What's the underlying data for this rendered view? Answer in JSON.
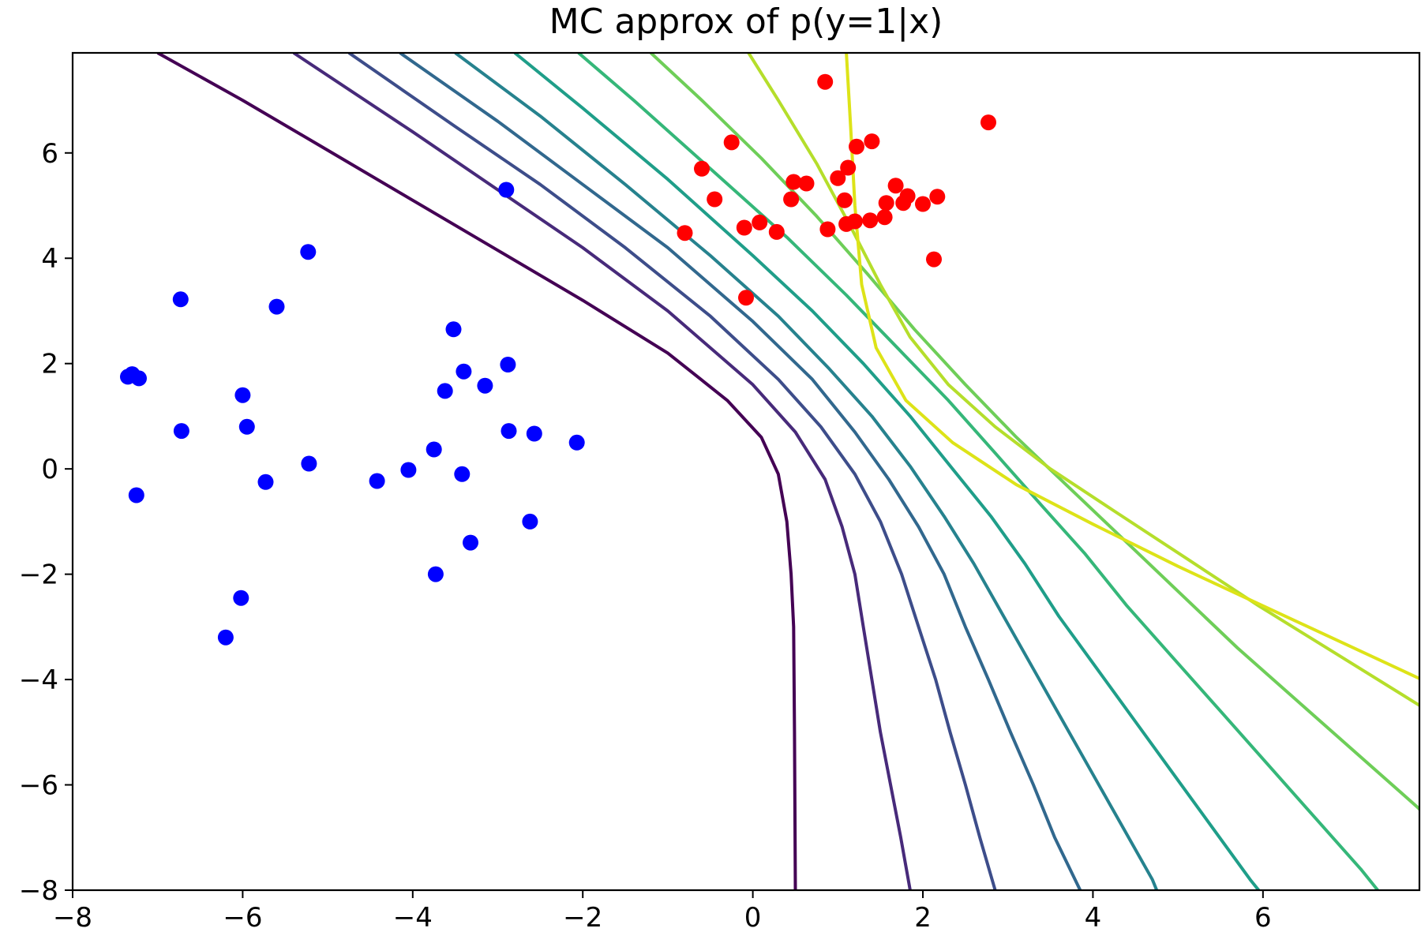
{
  "chart_data": {
    "type": "scatter",
    "title": "MC approx of p(y=1|x)",
    "xlabel": "",
    "ylabel": "",
    "xlim": [
      -8,
      8
    ],
    "ylim": [
      -8,
      8
    ],
    "xticks": [
      -8,
      -6,
      -4,
      -2,
      0,
      2,
      4,
      6
    ],
    "yticks": [
      -8,
      -6,
      -4,
      -2,
      0,
      2,
      4,
      6
    ],
    "xtick_labels": [
      "−8",
      "−6",
      "−4",
      "−2",
      "0",
      "2",
      "4",
      "6"
    ],
    "ytick_labels": [
      "−8",
      "−6",
      "−4",
      "−2",
      "0",
      "2",
      "4",
      "6"
    ],
    "grid": false,
    "series": [
      {
        "color": "#0000ff",
        "points": [
          [
            -7.35,
            1.75
          ],
          [
            -7.3,
            1.8
          ],
          [
            -7.22,
            1.72
          ],
          [
            -7.25,
            -0.5
          ],
          [
            -6.73,
            3.22
          ],
          [
            -6.72,
            0.72
          ],
          [
            -6.0,
            1.4
          ],
          [
            -5.95,
            0.8
          ],
          [
            -6.02,
            -2.45
          ],
          [
            -6.2,
            -3.2
          ],
          [
            -5.73,
            -0.25
          ],
          [
            -5.6,
            3.08
          ],
          [
            -5.23,
            4.12
          ],
          [
            -5.22,
            0.1
          ],
          [
            -4.42,
            -0.23
          ],
          [
            -4.05,
            -0.02
          ],
          [
            -3.75,
            0.37
          ],
          [
            -3.73,
            -2.0
          ],
          [
            -3.62,
            1.48
          ],
          [
            -3.52,
            2.65
          ],
          [
            -3.4,
            1.85
          ],
          [
            -3.42,
            -0.1
          ],
          [
            -3.32,
            -1.4
          ],
          [
            -3.15,
            1.58
          ],
          [
            -2.88,
            1.98
          ],
          [
            -2.87,
            0.72
          ],
          [
            -2.62,
            -1.0
          ],
          [
            -2.57,
            0.67
          ],
          [
            -2.07,
            0.5
          ],
          [
            -2.9,
            5.3
          ]
        ]
      },
      {
        "color": "#ff0000",
        "points": [
          [
            -0.8,
            4.48
          ],
          [
            -0.6,
            5.7
          ],
          [
            -0.45,
            5.12
          ],
          [
            -0.25,
            6.2
          ],
          [
            -0.1,
            4.58
          ],
          [
            -0.08,
            3.25
          ],
          [
            0.08,
            4.68
          ],
          [
            0.28,
            4.5
          ],
          [
            0.45,
            5.12
          ],
          [
            0.48,
            5.45
          ],
          [
            0.63,
            5.42
          ],
          [
            0.85,
            7.35
          ],
          [
            0.88,
            4.55
          ],
          [
            1.0,
            5.52
          ],
          [
            1.08,
            5.1
          ],
          [
            1.1,
            4.65
          ],
          [
            1.12,
            5.72
          ],
          [
            1.2,
            4.7
          ],
          [
            1.22,
            6.12
          ],
          [
            1.38,
            4.72
          ],
          [
            1.4,
            6.22
          ],
          [
            1.55,
            4.78
          ],
          [
            1.57,
            5.05
          ],
          [
            1.68,
            5.38
          ],
          [
            1.77,
            5.05
          ],
          [
            1.82,
            5.18
          ],
          [
            2.0,
            5.03
          ],
          [
            2.13,
            3.98
          ],
          [
            2.17,
            5.17
          ],
          [
            2.77,
            6.58
          ]
        ]
      }
    ],
    "contours": [
      {
        "color": "#440154",
        "points": [
          [
            -7.0,
            7.9
          ],
          [
            -6.0,
            7.0
          ],
          [
            -5.0,
            6.05
          ],
          [
            -4.0,
            5.1
          ],
          [
            -3.0,
            4.15
          ],
          [
            -2.0,
            3.2
          ],
          [
            -1.0,
            2.2
          ],
          [
            -0.3,
            1.3
          ],
          [
            0.1,
            0.6
          ],
          [
            0.3,
            -0.1
          ],
          [
            0.4,
            -1.0
          ],
          [
            0.45,
            -2.0
          ],
          [
            0.48,
            -3.0
          ],
          [
            0.49,
            -5.0
          ],
          [
            0.5,
            -8.0
          ]
        ]
      },
      {
        "color": "#472a7a",
        "points": [
          [
            -5.4,
            7.9
          ],
          [
            -4.0,
            6.4
          ],
          [
            -3.0,
            5.3
          ],
          [
            -2.0,
            4.2
          ],
          [
            -1.0,
            3.0
          ],
          [
            0.0,
            1.6
          ],
          [
            0.5,
            0.7
          ],
          [
            0.85,
            -0.2
          ],
          [
            1.05,
            -1.1
          ],
          [
            1.2,
            -2.0
          ],
          [
            1.3,
            -3.0
          ],
          [
            1.4,
            -4.0
          ],
          [
            1.5,
            -5.0
          ],
          [
            1.62,
            -6.0
          ],
          [
            1.74,
            -7.0
          ],
          [
            1.85,
            -8.0
          ]
        ]
      },
      {
        "color": "#3d4d8a",
        "points": [
          [
            -4.75,
            7.9
          ],
          [
            -3.5,
            6.5
          ],
          [
            -2.5,
            5.4
          ],
          [
            -1.5,
            4.2
          ],
          [
            -0.5,
            2.9
          ],
          [
            0.3,
            1.7
          ],
          [
            0.8,
            0.8
          ],
          [
            1.2,
            -0.1
          ],
          [
            1.5,
            -1.0
          ],
          [
            1.75,
            -2.0
          ],
          [
            1.95,
            -3.0
          ],
          [
            2.15,
            -4.0
          ],
          [
            2.32,
            -5.0
          ],
          [
            2.5,
            -6.0
          ],
          [
            2.67,
            -7.0
          ],
          [
            2.85,
            -8.0
          ]
        ]
      },
      {
        "color": "#31688e",
        "points": [
          [
            -4.15,
            7.9
          ],
          [
            -3.0,
            6.6
          ],
          [
            -2.0,
            5.4
          ],
          [
            -1.0,
            4.2
          ],
          [
            0.0,
            2.8
          ],
          [
            0.7,
            1.7
          ],
          [
            1.2,
            0.7
          ],
          [
            1.6,
            -0.2
          ],
          [
            1.95,
            -1.1
          ],
          [
            2.25,
            -2.0
          ],
          [
            2.5,
            -3.0
          ],
          [
            2.77,
            -4.0
          ],
          [
            3.03,
            -5.0
          ],
          [
            3.3,
            -6.0
          ],
          [
            3.55,
            -7.0
          ],
          [
            3.85,
            -8.0
          ]
        ]
      },
      {
        "color": "#26828e",
        "points": [
          [
            -3.5,
            7.9
          ],
          [
            -2.5,
            6.7
          ],
          [
            -1.5,
            5.4
          ],
          [
            -0.5,
            4.05
          ],
          [
            0.3,
            2.9
          ],
          [
            0.9,
            1.9
          ],
          [
            1.4,
            1.0
          ],
          [
            1.85,
            0.05
          ],
          [
            2.25,
            -0.9
          ],
          [
            2.6,
            -1.8
          ],
          [
            2.95,
            -2.8
          ],
          [
            3.3,
            -3.8
          ],
          [
            3.65,
            -4.8
          ],
          [
            4.0,
            -5.8
          ],
          [
            4.35,
            -6.8
          ],
          [
            4.7,
            -7.8
          ],
          [
            4.75,
            -8.0
          ]
        ]
      },
      {
        "color": "#1f9e89",
        "points": [
          [
            -2.8,
            7.9
          ],
          [
            -2.0,
            6.85
          ],
          [
            -1.0,
            5.5
          ],
          [
            0.0,
            4.05
          ],
          [
            0.7,
            3.0
          ],
          [
            1.3,
            2.0
          ],
          [
            1.85,
            1.0
          ],
          [
            2.35,
            0.0
          ],
          [
            2.8,
            -0.9
          ],
          [
            3.2,
            -1.8
          ],
          [
            3.6,
            -2.8
          ],
          [
            4.05,
            -3.8
          ],
          [
            4.5,
            -4.8
          ],
          [
            4.95,
            -5.8
          ],
          [
            5.4,
            -6.8
          ],
          [
            5.85,
            -7.8
          ],
          [
            5.95,
            -8.0
          ]
        ]
      },
      {
        "color": "#35b779",
        "points": [
          [
            -2.05,
            7.9
          ],
          [
            -1.4,
            7.0
          ],
          [
            -0.5,
            5.7
          ],
          [
            0.4,
            4.4
          ],
          [
            1.1,
            3.3
          ],
          [
            1.7,
            2.3
          ],
          [
            2.3,
            1.3
          ],
          [
            2.85,
            0.3
          ],
          [
            3.4,
            -0.7
          ],
          [
            3.9,
            -1.6
          ],
          [
            4.4,
            -2.6
          ],
          [
            4.95,
            -3.6
          ],
          [
            5.5,
            -4.6
          ],
          [
            6.05,
            -5.6
          ],
          [
            6.6,
            -6.6
          ],
          [
            7.15,
            -7.6
          ],
          [
            7.35,
            -8.0
          ]
        ]
      },
      {
        "color": "#6ece58",
        "points": [
          [
            -1.2,
            7.9
          ],
          [
            -0.6,
            7.0
          ],
          [
            0.1,
            5.9
          ],
          [
            0.75,
            4.8
          ],
          [
            1.35,
            3.7
          ],
          [
            1.9,
            2.65
          ],
          [
            2.5,
            1.6
          ],
          [
            3.1,
            0.6
          ],
          [
            3.75,
            -0.4
          ],
          [
            4.4,
            -1.4
          ],
          [
            5.05,
            -2.4
          ],
          [
            5.7,
            -3.4
          ],
          [
            6.4,
            -4.4
          ],
          [
            7.1,
            -5.4
          ],
          [
            7.8,
            -6.4
          ],
          [
            8.0,
            -6.7
          ]
        ]
      },
      {
        "color": "#b5de2b",
        "points": [
          [
            -0.05,
            7.9
          ],
          [
            0.3,
            7.0
          ],
          [
            0.75,
            5.8
          ],
          [
            1.15,
            4.6
          ],
          [
            1.5,
            3.5
          ],
          [
            1.85,
            2.5
          ],
          [
            2.3,
            1.6
          ],
          [
            2.85,
            0.8
          ],
          [
            3.5,
            0.0
          ],
          [
            4.25,
            -0.8
          ],
          [
            5.1,
            -1.7
          ],
          [
            5.95,
            -2.6
          ],
          [
            6.85,
            -3.5
          ],
          [
            7.75,
            -4.4
          ],
          [
            8.0,
            -4.65
          ]
        ]
      },
      {
        "color": "#dde318",
        "points": [
          [
            1.1,
            7.9
          ],
          [
            1.15,
            6.5
          ],
          [
            1.2,
            5.0
          ],
          [
            1.28,
            3.5
          ],
          [
            1.45,
            2.3
          ],
          [
            1.8,
            1.3
          ],
          [
            2.35,
            0.5
          ],
          [
            3.1,
            -0.3
          ],
          [
            4.0,
            -1.05
          ],
          [
            5.0,
            -1.85
          ],
          [
            6.0,
            -2.6
          ],
          [
            7.0,
            -3.35
          ],
          [
            8.0,
            -4.1
          ]
        ]
      }
    ]
  }
}
